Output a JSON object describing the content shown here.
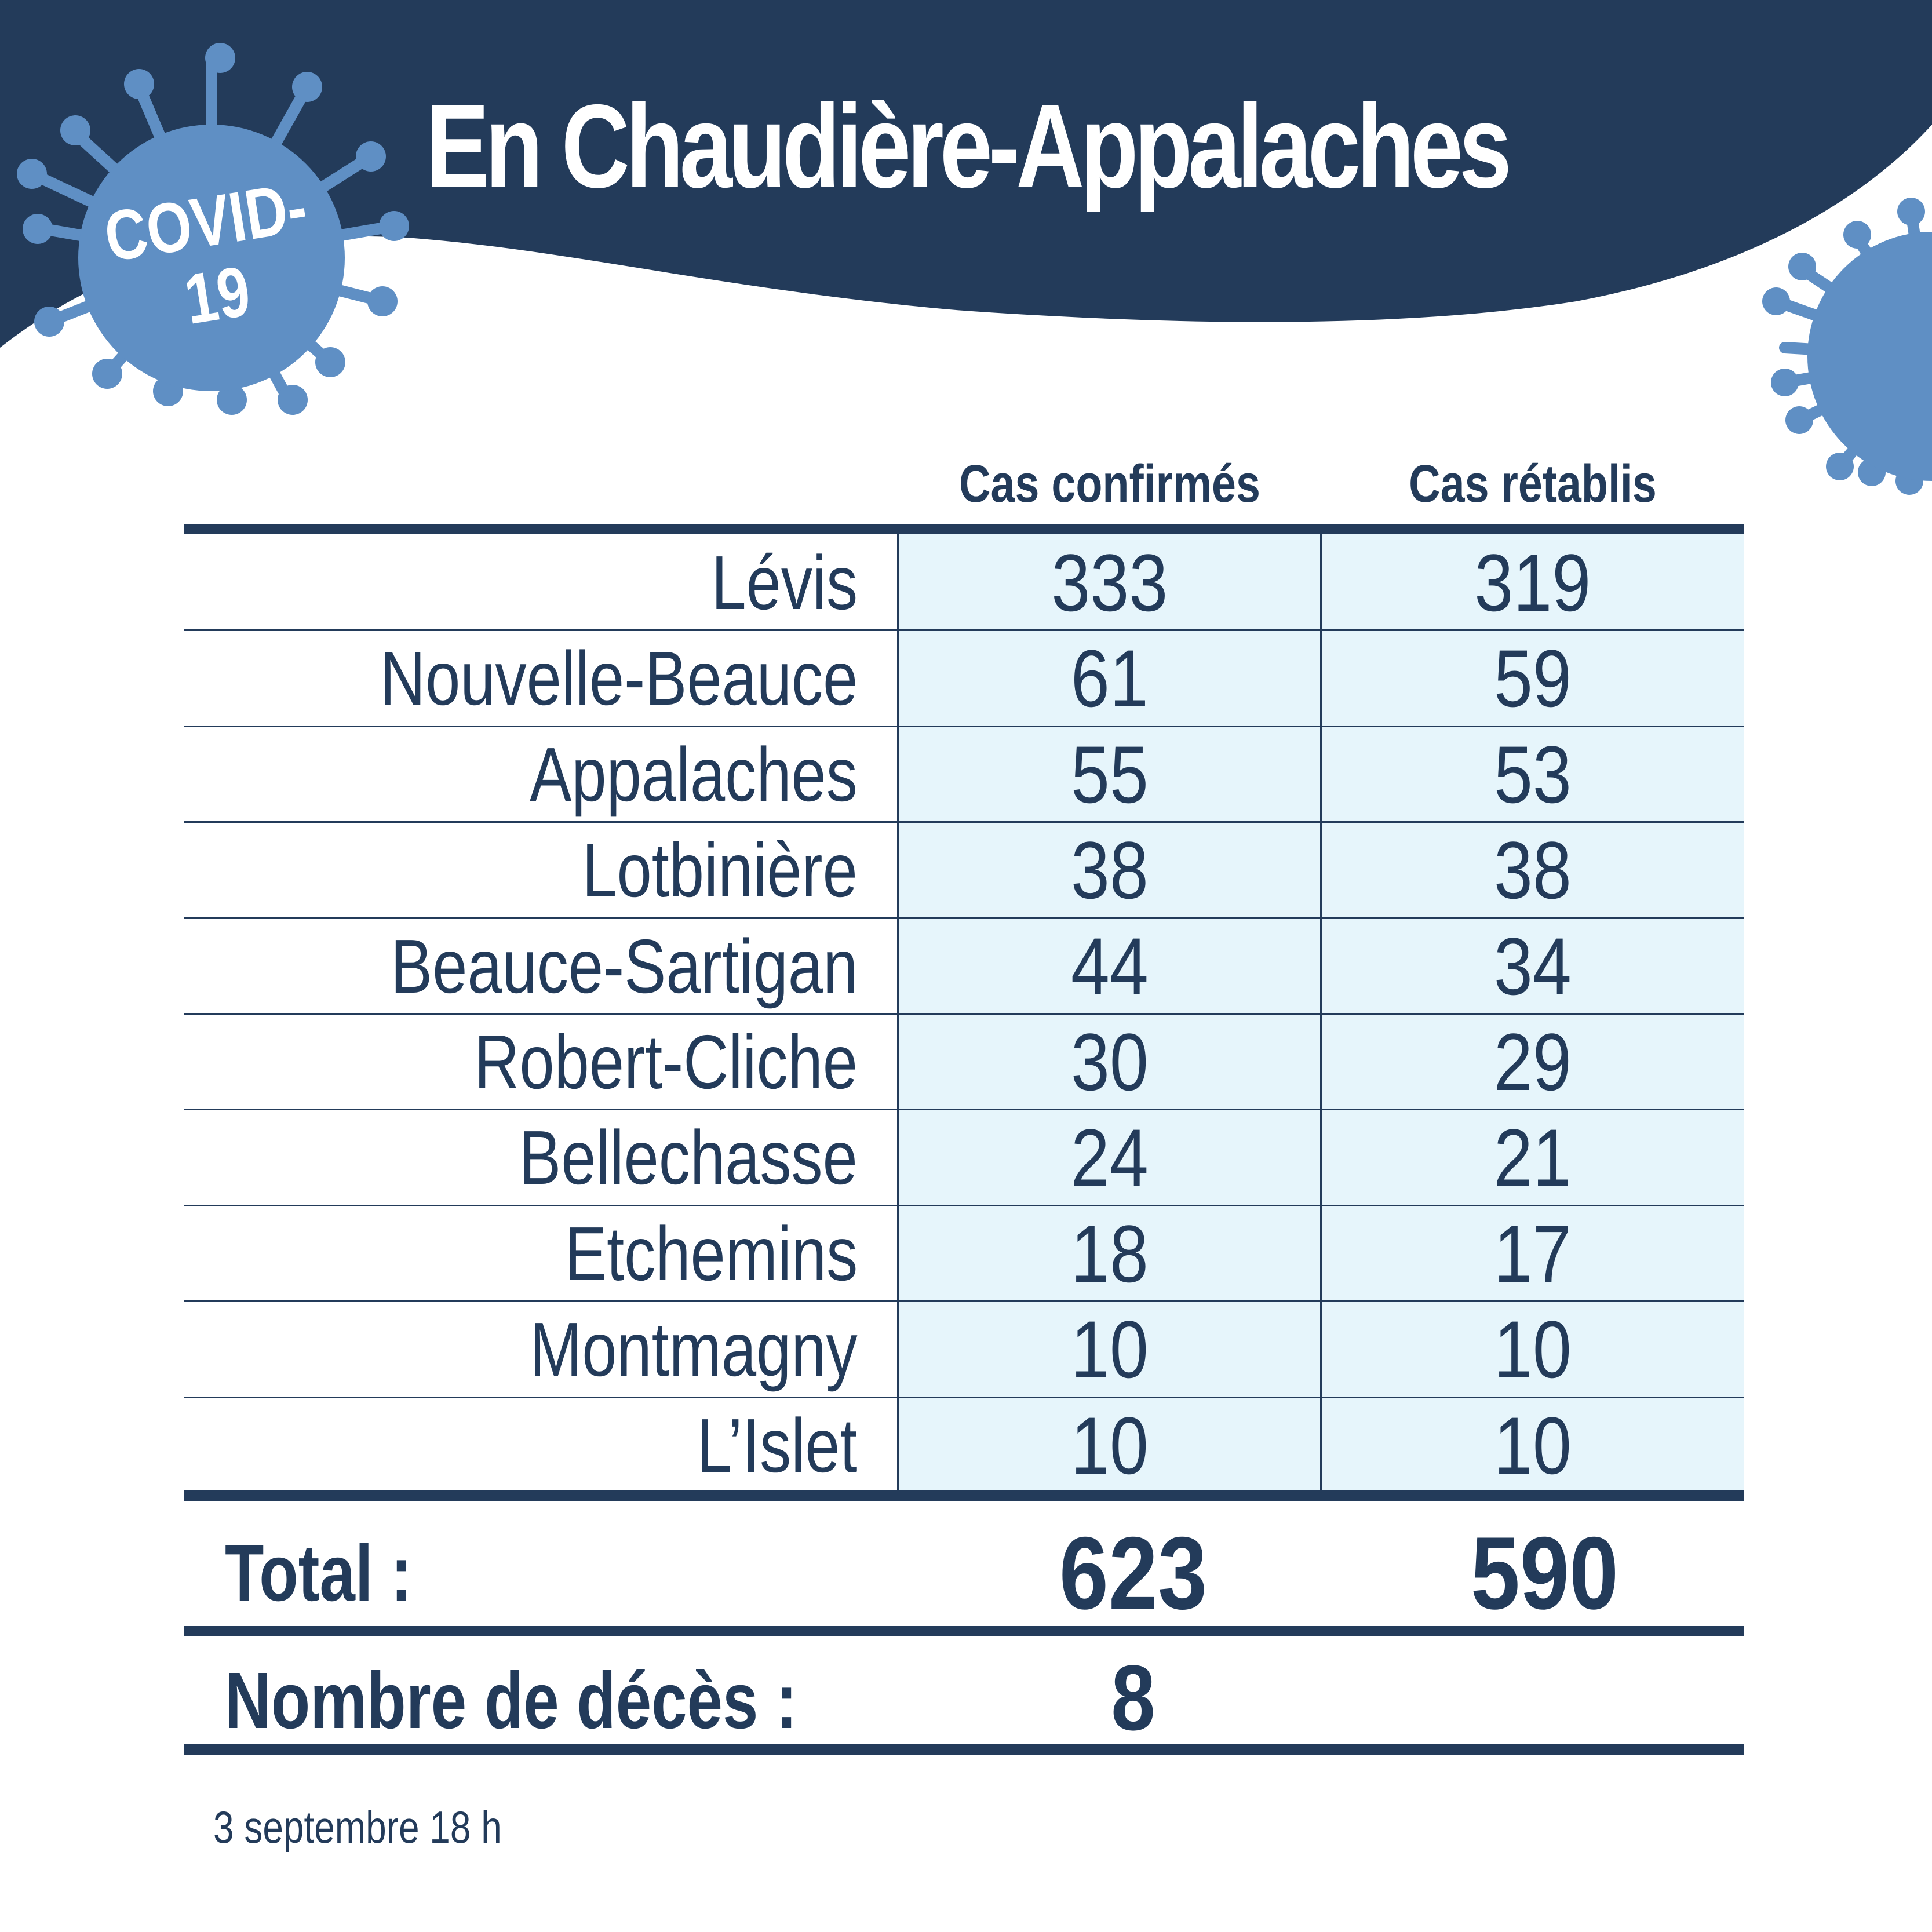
{
  "title": "En Chaudière-Appalaches",
  "badge": {
    "line1": "COVID-",
    "line2": "19"
  },
  "colors": {
    "navy": "#233b5a",
    "virus_blue": "#5f8fc4",
    "cell_tint": "#e6f5fb"
  },
  "chart_data": {
    "type": "table",
    "columns": [
      "Cas confirmés",
      "Cas rétablis"
    ],
    "rows": [
      {
        "region": "Lévis",
        "confirmed": "333",
        "recovered": "319"
      },
      {
        "region": "Nouvelle-Beauce",
        "confirmed": "61",
        "recovered": "59"
      },
      {
        "region": "Appalaches",
        "confirmed": "55",
        "recovered": "53"
      },
      {
        "region": "Lotbinière",
        "confirmed": "38",
        "recovered": "38"
      },
      {
        "region": "Beauce-Sartigan",
        "confirmed": "44",
        "recovered": "34"
      },
      {
        "region": "Robert-Cliche",
        "confirmed": "30",
        "recovered": "29"
      },
      {
        "region": "Bellechasse",
        "confirmed": "24",
        "recovered": "21"
      },
      {
        "region": "Etchemins",
        "confirmed": "18",
        "recovered": "17"
      },
      {
        "region": "Montmagny",
        "confirmed": "10",
        "recovered": "10"
      },
      {
        "region": "L’Islet",
        "confirmed": "10",
        "recovered": "10"
      }
    ],
    "total": {
      "label": "Total :",
      "confirmed": "623",
      "recovered": "590"
    },
    "deaths": {
      "label": "Nombre de décès :",
      "value": "8"
    }
  },
  "footnote": "3 septembre 18 h"
}
